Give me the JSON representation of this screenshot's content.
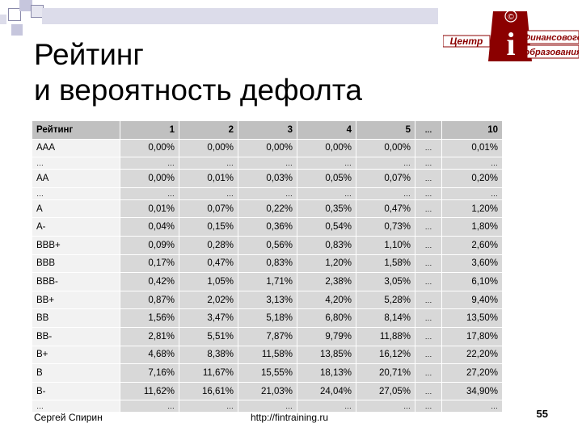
{
  "title": {
    "line1": "Рейтинг",
    "line2": "и вероятность дефолта"
  },
  "logo": {
    "line1": "Центр",
    "line2": "Финансового",
    "line3": "образования",
    "letter": "i",
    "mark": "©"
  },
  "table": {
    "header": [
      "Рейтинг",
      "1",
      "2",
      "3",
      "4",
      "5",
      "…",
      "10"
    ],
    "rows": [
      {
        "rating": "AAA",
        "values": [
          "0,00%",
          "0,00%",
          "0,00%",
          "0,00%",
          "0,00%",
          "…",
          "0,01%"
        ]
      },
      {
        "rating": "…",
        "values": [
          "…",
          "…",
          "…",
          "…",
          "…",
          "…",
          "…"
        ]
      },
      {
        "rating": "AA",
        "values": [
          "0,00%",
          "0,01%",
          "0,03%",
          "0,05%",
          "0,07%",
          "…",
          "0,20%"
        ]
      },
      {
        "rating": "…",
        "values": [
          "…",
          "…",
          "…",
          "…",
          "…",
          "…",
          "…"
        ]
      },
      {
        "rating": "A",
        "values": [
          "0,01%",
          "0,07%",
          "0,22%",
          "0,35%",
          "0,47%",
          "…",
          "1,20%"
        ]
      },
      {
        "rating": "A-",
        "values": [
          "0,04%",
          "0,15%",
          "0,36%",
          "0,54%",
          "0,73%",
          "…",
          "1,80%"
        ]
      },
      {
        "rating": "BBB+",
        "values": [
          "0,09%",
          "0,28%",
          "0,56%",
          "0,83%",
          "1,10%",
          "…",
          "2,60%"
        ]
      },
      {
        "rating": "BBB",
        "values": [
          "0,17%",
          "0,47%",
          "0,83%",
          "1,20%",
          "1,58%",
          "…",
          "3,60%"
        ]
      },
      {
        "rating": "BBB-",
        "values": [
          "0,42%",
          "1,05%",
          "1,71%",
          "2,38%",
          "3,05%",
          "…",
          "6,10%"
        ]
      },
      {
        "rating": "BB+",
        "values": [
          "0,87%",
          "2,02%",
          "3,13%",
          "4,20%",
          "5,28%",
          "…",
          "9,40%"
        ]
      },
      {
        "rating": "BB",
        "values": [
          "1,56%",
          "3,47%",
          "5,18%",
          "6,80%",
          "8,14%",
          "…",
          "13,50%"
        ]
      },
      {
        "rating": "BB-",
        "values": [
          "2,81%",
          "5,51%",
          "7,87%",
          "9,79%",
          "11,88%",
          "…",
          "17,80%"
        ]
      },
      {
        "rating": "B+",
        "values": [
          "4,68%",
          "8,38%",
          "11,58%",
          "13,85%",
          "16,12%",
          "…",
          "22,20%"
        ]
      },
      {
        "rating": "B",
        "values": [
          "7,16%",
          "11,67%",
          "15,55%",
          "18,13%",
          "20,71%",
          "…",
          "27,20%"
        ]
      },
      {
        "rating": "B-",
        "values": [
          "11,62%",
          "16,61%",
          "21,03%",
          "24,04%",
          "27,05%",
          "…",
          "34,90%"
        ]
      },
      {
        "rating": "…",
        "values": [
          "…",
          "…",
          "…",
          "…",
          "…",
          "…",
          "…"
        ]
      }
    ]
  },
  "footer": {
    "author": "Сергей Спирин",
    "url": "http://fintraining.ru",
    "page": "55"
  }
}
